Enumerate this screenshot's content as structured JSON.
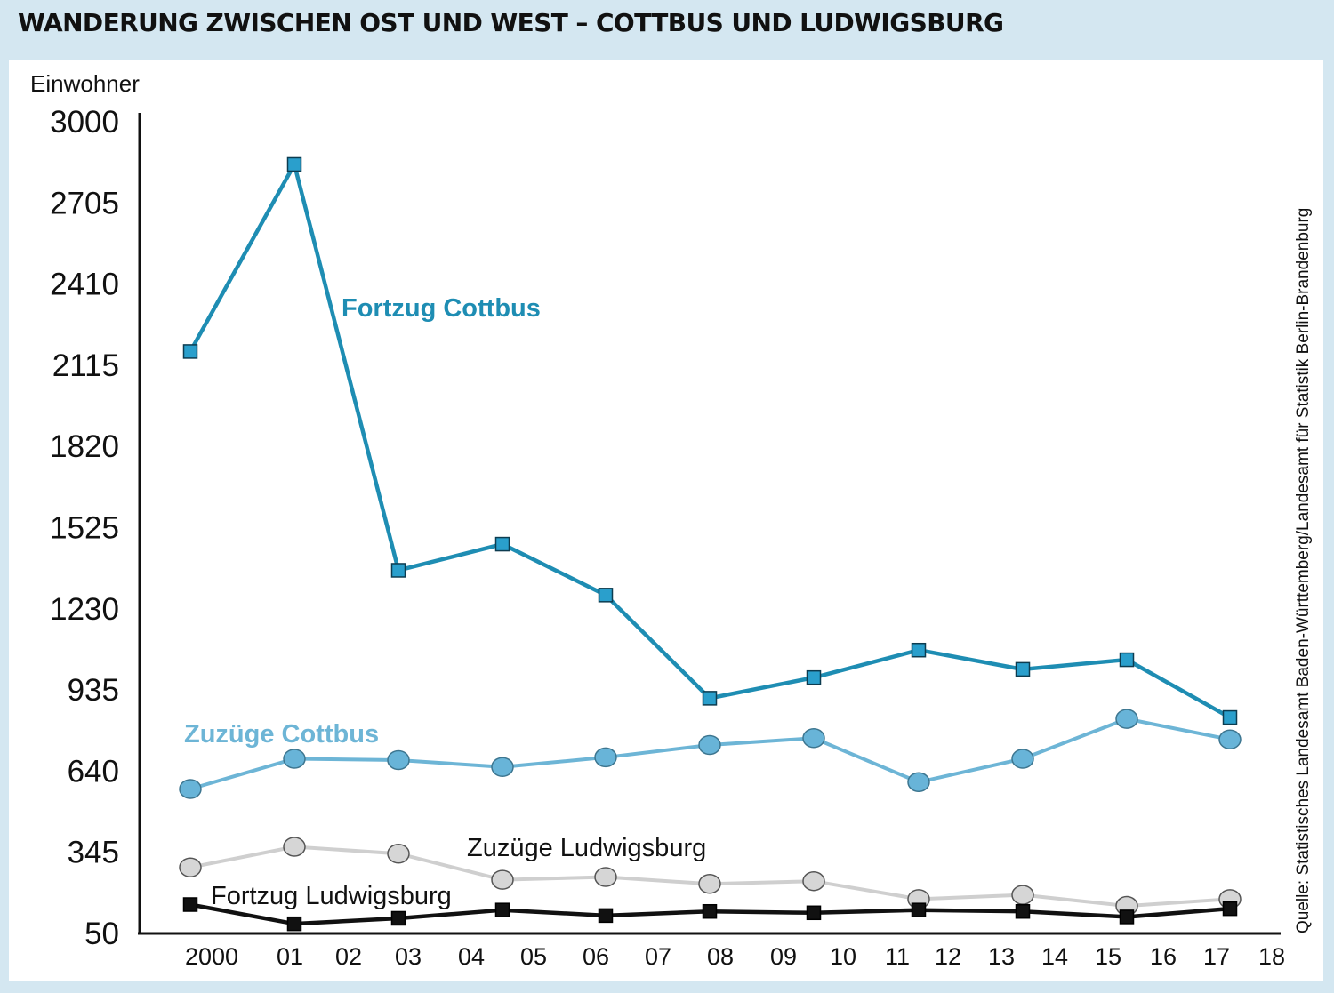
{
  "title": "WANDERUNG ZWISCHEN OST UND WEST – COTTBUS UND LUDWIGSBURG",
  "source": "Quelle: Statistisches Landesamt Baden-Württemberg/Landesamt für Statistik Berlin-Brandenburg",
  "colors": {
    "fortzug_cottbus": "#1e8db3",
    "fortzug_cottbus_marker": "#2a9fcc",
    "zuzuege_cottbus": "#6db5d6",
    "zuzuege_cottbus_marker": "#68b4d8",
    "zuzuege_ludwigsburg": "#cfcfcf",
    "zuzuege_ludwigsburg_marker": "#d6d6d6",
    "fortzug_ludwigsburg": "#111111",
    "axis": "#111111",
    "background": "#d4e7f1"
  },
  "chart_data": {
    "type": "line",
    "title": "WANDERUNG ZWISCHEN OST UND WEST – COTTBUS UND LUDWIGSBURG",
    "ylabel": "Einwohner",
    "xlabel": "",
    "ylim": [
      50,
      3000
    ],
    "y_ticks": [
      3000,
      2705,
      2410,
      2115,
      1820,
      1525,
      1230,
      935,
      640,
      345,
      50
    ],
    "x_ticks": [
      "2000",
      "01",
      "02",
      "03",
      "04",
      "05",
      "06",
      "07",
      "08",
      "09",
      "10",
      "11",
      "12",
      "13",
      "14",
      "15",
      "16",
      "17",
      "18"
    ],
    "x": [
      "2000",
      "01",
      "03",
      "04",
      "06",
      "08",
      "10",
      "11",
      "13",
      "15",
      "17"
    ],
    "grid": false,
    "series": [
      {
        "name": "Fortzug Cottbus",
        "marker": "square",
        "values": [
          2165,
          2845,
          1370,
          1465,
          1280,
          905,
          980,
          1080,
          1010,
          1045,
          835
        ]
      },
      {
        "name": "Zuzüge Cottbus",
        "marker": "circle",
        "values": [
          575,
          685,
          680,
          655,
          690,
          735,
          760,
          600,
          685,
          830,
          755
        ]
      },
      {
        "name": "Zuzüge Ludwigsburg",
        "marker": "circle",
        "values": [
          290,
          365,
          340,
          245,
          255,
          230,
          240,
          175,
          190,
          150,
          175
        ]
      },
      {
        "name": "Fortzug Ludwigsburg",
        "marker": "square",
        "values": [
          155,
          85,
          105,
          135,
          115,
          130,
          125,
          135,
          130,
          110,
          140
        ]
      }
    ]
  }
}
